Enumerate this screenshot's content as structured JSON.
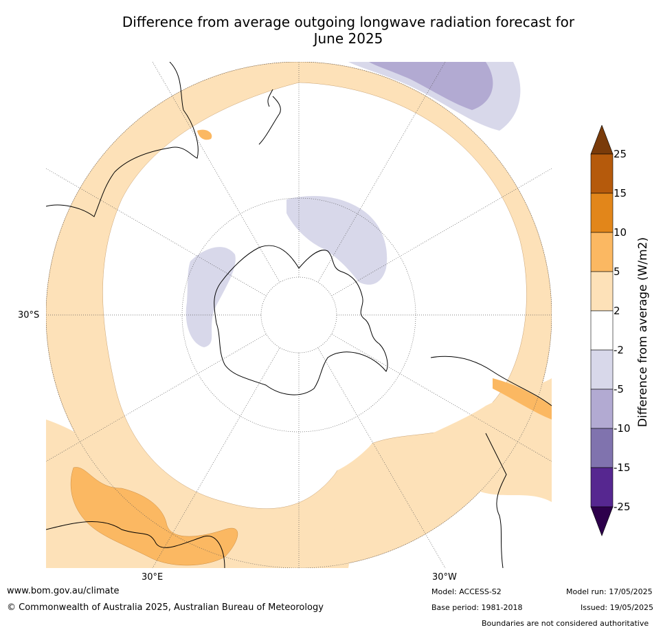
{
  "title_line1": "Difference from average outgoing longwave radiation forecast for",
  "title_line2": "June 2025",
  "map": {
    "lat_label": "30°S",
    "lon_label_east": "30°E",
    "lon_label_west": "30°W"
  },
  "colorbar": {
    "title": "Difference from average (W/m2)",
    "ticks": [
      "25",
      "15",
      "10",
      "5",
      "2",
      "-2",
      "-5",
      "-10",
      "-15",
      "-25"
    ],
    "colors": [
      "#7a3b0a",
      "#b55a0c",
      "#e2861a",
      "#fbb862",
      "#fde1b8",
      "#ffffff",
      "#d8d8ea",
      "#b2aad2",
      "#8073ae",
      "#562790",
      "#2d004b"
    ]
  },
  "footer": {
    "website": "www.bom.gov.au/climate",
    "copyright": "© Commonwealth of Australia 2025, Australian Bureau of Meteorology",
    "model": "Model: ACCESS-S2",
    "base_period": "Base period: 1981-2018",
    "model_run": "Model run: 17/05/2025",
    "issued": "Issued: 19/05/2025",
    "disclaimer": "Boundaries are not considered authoritative"
  }
}
